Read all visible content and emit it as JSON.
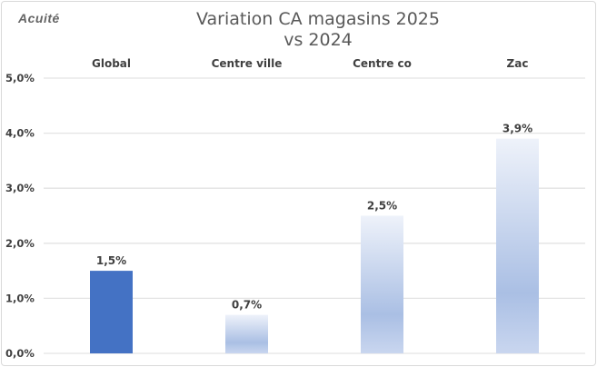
{
  "logo_text": "Acuité",
  "chart_data": {
    "type": "bar",
    "title": "Variation CA magasins 2025 vs 2024",
    "title_lines": [
      "Variation CA magasins 2025",
      "vs 2024"
    ],
    "categories": [
      "Global",
      "Centre ville",
      "Centre co",
      "Zac"
    ],
    "values": [
      1.5,
      0.7,
      2.5,
      3.9
    ],
    "data_labels": [
      "1,5%",
      "0,7%",
      "2,5%",
      "3,9%"
    ],
    "ylim": [
      0,
      5
    ],
    "yticks": [
      0,
      1,
      2,
      3,
      4,
      5
    ],
    "ytick_labels": [
      "0,0%",
      "1,0%",
      "2,0%",
      "3,0%",
      "4,0%",
      "5,0%"
    ],
    "category_labels_position": "top",
    "grid": true,
    "colors": {
      "highlight": "#4472c4",
      "gradient_top": "#eef2fa",
      "gradient_mid": "#aabfe4",
      "gradient_bottom": "#c9d6ef",
      "grid": "#e3e3e3"
    }
  }
}
